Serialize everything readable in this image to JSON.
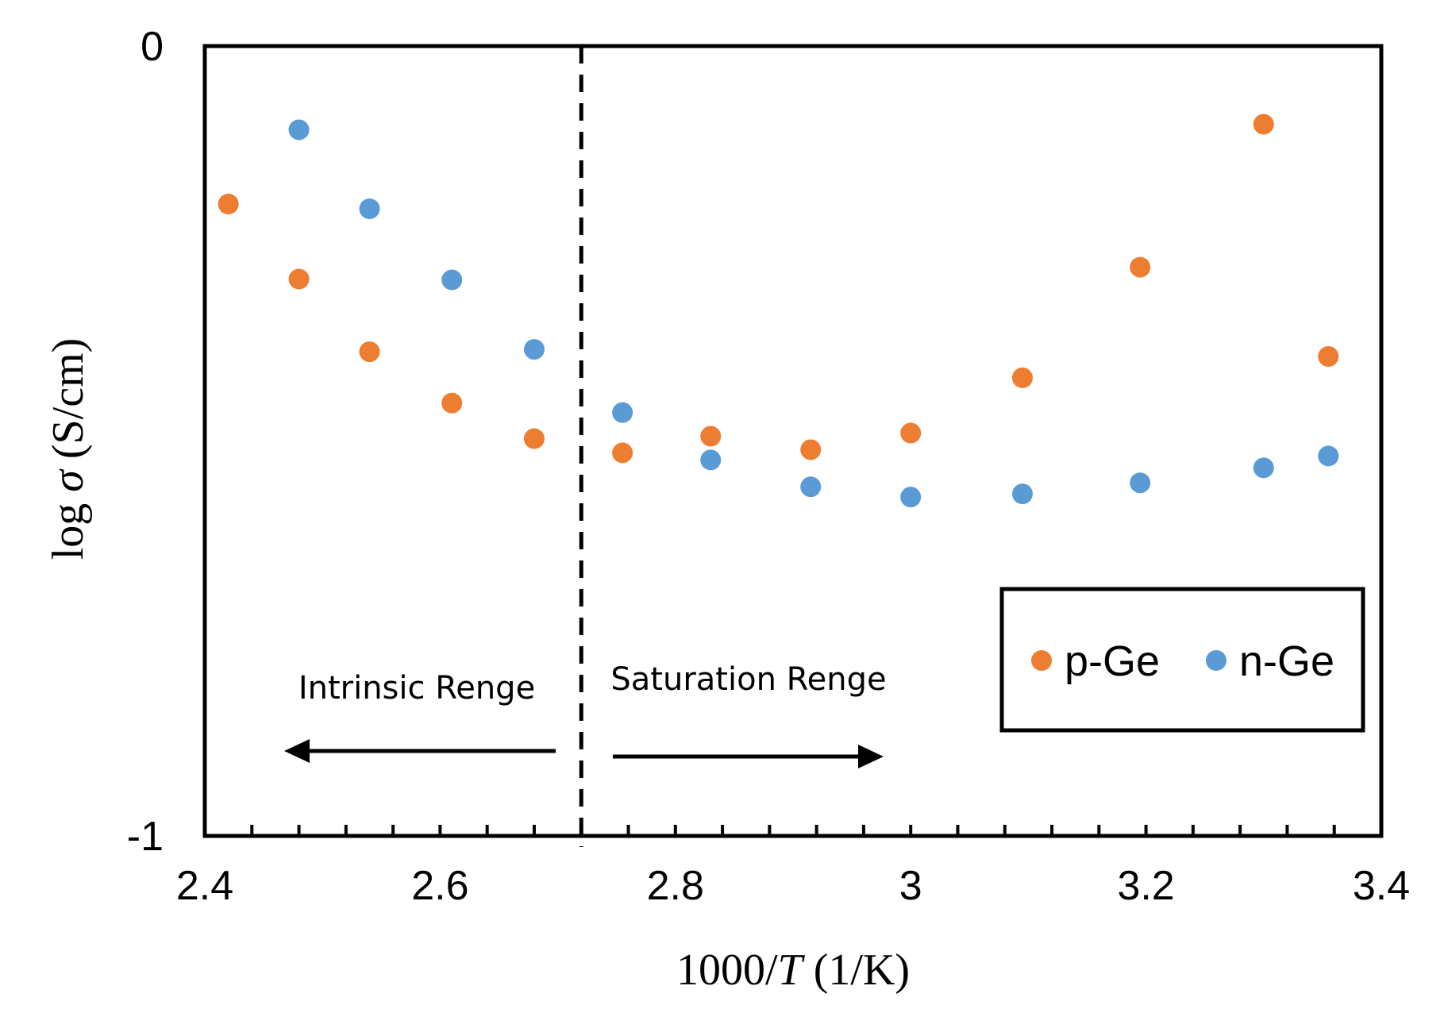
{
  "chart_data": {
    "type": "scatter",
    "title": "",
    "xlabel_prefix": "1000/",
    "xlabel_var": "T",
    "xlabel_suffix": " (1/K)",
    "ylabel_prefix": "log ",
    "ylabel_var": "σ",
    "ylabel_suffix": "  (S/cm)",
    "xlim": [
      2.4,
      3.4
    ],
    "ylim": [
      -1,
      0
    ],
    "x_ticks": [
      "2.4",
      "2.6",
      "2.8",
      "3",
      "3.2",
      "3.4"
    ],
    "x_tick_values": [
      2.4,
      2.6,
      2.8,
      3.0,
      3.2,
      3.4
    ],
    "y_ticks": [
      "0",
      "-1"
    ],
    "y_tick_values": [
      0,
      -1
    ],
    "minor_x_step": 0.04,
    "grid": false,
    "legend_position": "bottom-right",
    "divider_x": 2.72,
    "series": [
      {
        "name": "p-Ge",
        "color": "#ED7D31",
        "x": [
          2.42,
          2.48,
          2.54,
          2.61,
          2.68,
          2.755,
          2.83,
          2.915,
          3.0,
          3.095,
          3.195,
          3.3,
          3.355
        ],
        "y": [
          -0.2,
          -0.295,
          -0.387,
          -0.452,
          -0.497,
          -0.515,
          -0.494,
          -0.511,
          -0.49,
          -0.42,
          -0.28,
          -0.099,
          -0.393
        ]
      },
      {
        "name": "n-Ge",
        "color": "#5B9BD5",
        "x": [
          2.48,
          2.54,
          2.61,
          2.68,
          2.755,
          2.83,
          2.915,
          3.0,
          3.095,
          3.195,
          3.3,
          3.355
        ],
        "y": [
          -0.106,
          -0.206,
          -0.296,
          -0.384,
          -0.464,
          -0.524,
          -0.558,
          -0.571,
          -0.567,
          -0.553,
          -0.534,
          -0.519
        ]
      }
    ],
    "annotations": {
      "left_label": "Intrinsic Renge",
      "right_label": "Saturation Renge"
    }
  }
}
